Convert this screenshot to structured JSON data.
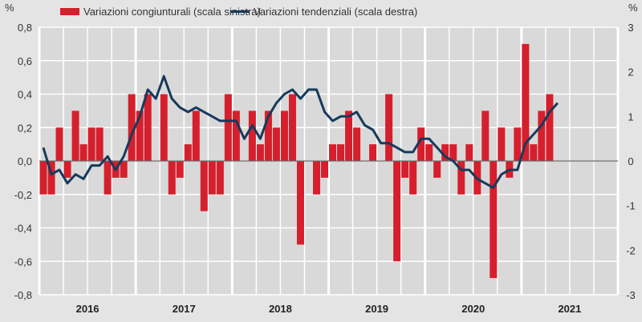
{
  "chart_data": {
    "type": "bar+line",
    "title": "",
    "left_unit": "%",
    "right_unit": "%",
    "legend_placement": "top",
    "grid": true,
    "colors": {
      "bars": "#d61f2c",
      "line": "#163a5c",
      "plot_background": "#d9d9d9",
      "grid": "#ffffff"
    },
    "x_tick_labels": [
      "2016",
      "2017",
      "2018",
      "2019",
      "2020",
      "2021"
    ],
    "x_range": [
      "2016-01",
      "2021-12"
    ],
    "left_axis": {
      "ylim": [
        -0.8,
        0.8
      ],
      "ticks": [
        "0,8",
        "0,6",
        "0,4",
        "0,2",
        "0,0",
        "-0,2",
        "-0,4",
        "-0,6",
        "-0,8"
      ]
    },
    "right_axis": {
      "ylim": [
        -3,
        3
      ],
      "ticks": [
        "3",
        "2",
        "1",
        "0",
        "-1",
        "-2",
        "-3"
      ]
    },
    "series": [
      {
        "name": "Variazioni congiunturali (scala sinistra)",
        "type": "bar",
        "axis": "left",
        "start": "2016-01",
        "values": [
          -0.2,
          -0.2,
          0.2,
          -0.1,
          0.3,
          0.1,
          0.2,
          0.2,
          -0.2,
          -0.1,
          -0.1,
          0.4,
          0.3,
          0.4,
          0.0,
          0.4,
          -0.2,
          -0.1,
          0.1,
          0.3,
          -0.3,
          -0.2,
          -0.2,
          0.4,
          0.3,
          0.0,
          0.3,
          0.1,
          0.3,
          0.2,
          0.3,
          0.4,
          -0.5,
          0.0,
          -0.2,
          -0.1,
          0.1,
          0.1,
          0.3,
          0.2,
          0.0,
          0.1,
          0.0,
          0.4,
          -0.6,
          -0.1,
          -0.2,
          0.2,
          0.1,
          -0.1,
          0.1,
          0.1,
          -0.2,
          0.1,
          -0.2,
          0.3,
          -0.7,
          0.2,
          -0.1,
          0.2,
          0.7,
          0.1,
          0.3,
          0.4
        ]
      },
      {
        "name": "Variazioni tendenziali (scala destra)",
        "type": "line",
        "axis": "right",
        "start": "2016-01",
        "values": [
          0.3,
          -0.3,
          -0.2,
          -0.5,
          -0.3,
          -0.4,
          -0.1,
          -0.1,
          0.1,
          -0.2,
          0.1,
          0.6,
          1.0,
          1.6,
          1.4,
          1.9,
          1.4,
          1.2,
          1.1,
          1.2,
          1.1,
          1.0,
          0.9,
          0.9,
          0.9,
          0.5,
          0.8,
          0.5,
          1.0,
          1.3,
          1.5,
          1.6,
          1.4,
          1.6,
          1.6,
          1.1,
          0.9,
          1.0,
          1.0,
          1.1,
          0.8,
          0.7,
          0.4,
          0.4,
          0.3,
          0.2,
          0.2,
          0.5,
          0.5,
          0.3,
          0.1,
          0.0,
          -0.2,
          -0.2,
          -0.4,
          -0.5,
          -0.6,
          -0.3,
          -0.2,
          -0.2,
          0.4,
          0.6,
          0.8,
          1.1,
          1.3
        ]
      }
    ]
  }
}
